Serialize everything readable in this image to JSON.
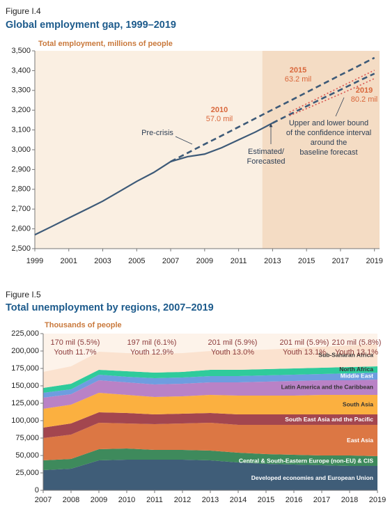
{
  "chart_data": [
    {
      "type": "line",
      "figure_label": "Figure I.4",
      "title": "Global employment gap, 1999–2019",
      "ylabel": "Total employment, millions of people",
      "x": [
        1999,
        2000,
        2001,
        2002,
        2003,
        2004,
        2005,
        2006,
        2007,
        2008,
        2009,
        2010,
        2011,
        2012,
        2013,
        2014,
        2015,
        2016,
        2017,
        2018,
        2019
      ],
      "xlim": [
        1999,
        2019.3
      ],
      "xticks": [
        1999,
        2001,
        2003,
        2005,
        2007,
        2009,
        2011,
        2013,
        2015,
        2017,
        2019
      ],
      "ylim": [
        2500,
        3500
      ],
      "yticks": [
        {
          "value": 2500,
          "label": "2,500"
        },
        {
          "value": 2600,
          "label": "2,600"
        },
        {
          "value": 2700,
          "label": "2,700"
        },
        {
          "value": 2800,
          "label": "2,800"
        },
        {
          "value": 2900,
          "label": "2,900"
        },
        {
          "value": 3000,
          "label": "3,000"
        },
        {
          "value": 3100,
          "label": "3,100"
        },
        {
          "value": 3200,
          "label": "3,200"
        },
        {
          "value": 3300,
          "label": "3,300"
        },
        {
          "value": 3400,
          "label": "3,400"
        },
        {
          "value": 3500,
          "label": "3,500"
        }
      ],
      "shaded_xlim": [
        2012.4,
        2019.3
      ],
      "series": [
        {
          "color": "#3d5a78",
          "style": "solid",
          "values": [
            2570,
            2612,
            2655,
            2697,
            2740,
            2790,
            2840,
            2885,
            2940,
            2965,
            2978,
            3010,
            3050,
            3090,
            3135,
            null,
            null,
            null,
            null,
            null,
            null
          ]
        },
        {
          "color": "#3d5a78",
          "style": "dashed",
          "values": [
            null,
            null,
            null,
            null,
            null,
            null,
            null,
            null,
            null,
            null,
            null,
            null,
            null,
            null,
            3135,
            3178,
            3220,
            3262,
            3303,
            3345,
            3385
          ]
        },
        {
          "color": "#3d5a78",
          "style": "dashed",
          "values": [
            null,
            null,
            null,
            null,
            null,
            null,
            null,
            null,
            2940,
            2984,
            3028,
            3071,
            3115,
            3159,
            3203,
            3246,
            3290,
            3334,
            3378,
            3421,
            3465
          ]
        },
        {
          "color": "#d9534f",
          "style": "dotted",
          "values": [
            null,
            null,
            null,
            null,
            null,
            null,
            null,
            null,
            null,
            null,
            null,
            null,
            null,
            null,
            null,
            3190,
            3232,
            3275,
            3318,
            3360,
            3402
          ]
        },
        {
          "color": "#d9534f",
          "style": "dotted",
          "values": [
            null,
            null,
            null,
            null,
            null,
            null,
            null,
            null,
            null,
            null,
            null,
            null,
            null,
            null,
            null,
            3172,
            3208,
            3245,
            3282,
            3320,
            3360
          ]
        }
      ],
      "annotations": [
        {
          "lines": [
            "2010",
            "57.0 mil"
          ]
        },
        {
          "lines": [
            "2015",
            "63.2 mil"
          ]
        },
        {
          "lines": [
            "2019",
            "80.2 mil"
          ]
        },
        {
          "lines": [
            "Pre-crisis"
          ]
        },
        {
          "lines": [
            "Estimated/",
            "Forecasted"
          ]
        },
        {
          "lines": [
            "Upper and lower bound",
            "of the confidence interval",
            "around the",
            "baseline forecast"
          ]
        }
      ]
    },
    {
      "type": "stacked-area",
      "figure_label": "Figure I.5",
      "title": "Total unemployment by regions, 2007–2019",
      "ylabel": "Thousands of people",
      "categories": [
        "2007",
        "2008",
        "2009",
        "2010",
        "2011",
        "2012",
        "2013",
        "2014",
        "2015",
        "2016",
        "2017",
        "2018",
        "2019"
      ],
      "ylim": [
        0,
        225000
      ],
      "yticks": [
        0,
        {
          "value": 25000,
          "label": "25,000"
        },
        {
          "value": 50000,
          "label": "50,000"
        },
        {
          "value": 75000,
          "label": "75,000"
        },
        {
          "value": 100000,
          "label": "100,000"
        },
        {
          "value": 125000,
          "label": "125,000"
        },
        {
          "value": 150000,
          "label": "150,000"
        },
        {
          "value": 175000,
          "label": "175,000"
        },
        {
          "value": 200000,
          "label": "200,000"
        },
        {
          "value": 225000,
          "label": "225,000"
        }
      ],
      "series": [
        {
          "name": "Developed economies and European Union",
          "color": "#3f5d78",
          "label_color": "#ffffff",
          "values": [
            29000,
            31000,
            43000,
            44000,
            44000,
            44000,
            43000,
            40000,
            38000,
            37000,
            36000,
            35000,
            35000
          ]
        },
        {
          "name": "Central & South-Eastern Europe (non-EU) & CIS",
          "color": "#3e8a5c",
          "label_color": "#ffffff",
          "values": [
            14000,
            14000,
            16000,
            16000,
            14000,
            14000,
            14000,
            14000,
            14000,
            14000,
            14000,
            15000,
            14000
          ]
        },
        {
          "name": "East Asia",
          "color": "#dc7744",
          "label_color": "#ffffff",
          "values": [
            32000,
            35000,
            38000,
            36000,
            37000,
            38000,
            40000,
            40000,
            42000,
            43000,
            44000,
            44000,
            45000
          ]
        },
        {
          "name": "South East Asia and the Pacific",
          "color": "#a3464f",
          "label_color": "#ffffff",
          "values": [
            15000,
            16000,
            15000,
            15000,
            14000,
            14000,
            14000,
            15000,
            15000,
            15000,
            15000,
            15000,
            15000
          ]
        },
        {
          "name": "South Asia",
          "color": "#fbb040",
          "label_color": "#333333",
          "values": [
            27000,
            27000,
            28000,
            26000,
            25000,
            25000,
            26000,
            27000,
            27000,
            27000,
            28000,
            28000,
            28000
          ]
        },
        {
          "name": "Latin America and the Caribbean",
          "color": "#b982c6",
          "label_color": "#333333",
          "values": [
            16000,
            15000,
            18000,
            18000,
            18000,
            18000,
            18000,
            19000,
            20000,
            21000,
            21000,
            21000,
            22000
          ]
        },
        {
          "name": "Middle East",
          "color": "#6e9de0",
          "label_color": "#ffffff",
          "values": [
            7000,
            7000,
            8000,
            8000,
            9000,
            9000,
            9000,
            9000,
            9000,
            9000,
            9000,
            10000,
            10000
          ]
        },
        {
          "name": "North Africa",
          "color": "#2fcb9b",
          "label_color": "#333333",
          "values": [
            7000,
            8000,
            7000,
            8000,
            8000,
            8000,
            9000,
            9000,
            9000,
            9000,
            9000,
            9000,
            9000
          ]
        },
        {
          "name": "Sub-Saharan Africa",
          "color": "#fbe2cf",
          "label_color": "#333333",
          "values": [
            23000,
            25000,
            26000,
            26000,
            27000,
            27000,
            27000,
            28000,
            28000,
            29000,
            30000,
            31000,
            32000
          ]
        }
      ],
      "annotations": [
        {
          "lines": [
            "170 mil (5.5%)",
            "Youth 11.7%"
          ]
        },
        {
          "lines": [
            "197 mil (6.1%)",
            "Youth 12.9%"
          ]
        },
        {
          "lines": [
            "201 mil (5.9%)",
            "Youth 13.0%"
          ]
        },
        {
          "lines": [
            "201 mil (5.9%)",
            "Youth 13.1%"
          ]
        },
        {
          "lines": [
            "210 mil (5.8%)",
            "Youth 13.1%"
          ]
        }
      ]
    }
  ]
}
